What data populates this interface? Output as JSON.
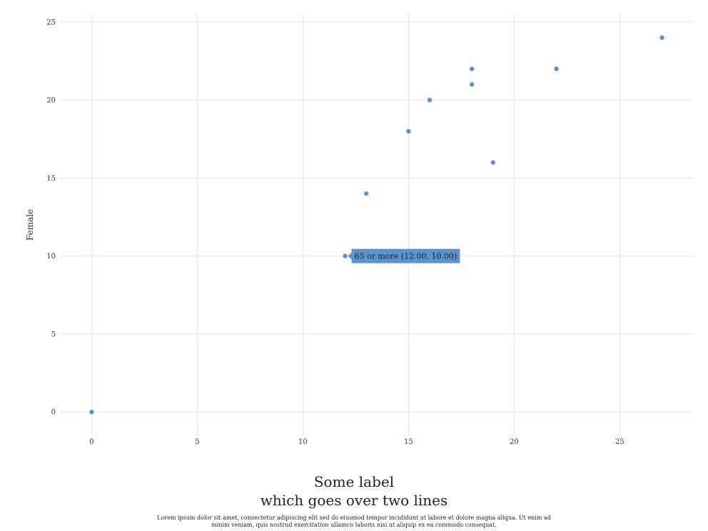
{
  "chart_data": {
    "type": "scatter",
    "ylabel": "Female",
    "xlabel_lines": [
      "Some label",
      "which goes over two lines"
    ],
    "note": "Lorem ipsum dolor sit amet, consectetur adipiscing elit sed do eiusmod tempor incididunt ut labore et dolore magna aliqua. Ut enim ad minim veniam, quis nostrud exercitation ullamco laboris nisi ut aliquip ex ea commodo consequat.",
    "x_ticks": [
      0,
      5,
      10,
      15,
      20,
      25
    ],
    "y_ticks": [
      0,
      5,
      10,
      15,
      20,
      25
    ],
    "xlim": [
      -1.5,
      28.5
    ],
    "ylim": [
      -1.5,
      25.5
    ],
    "grid": true,
    "points": [
      {
        "x": 0,
        "y": 0
      },
      {
        "x": 12,
        "y": 10
      },
      {
        "x": 13,
        "y": 14
      },
      {
        "x": 15,
        "y": 18
      },
      {
        "x": 16,
        "y": 20
      },
      {
        "x": 18,
        "y": 21
      },
      {
        "x": 18,
        "y": 22
      },
      {
        "x": 19,
        "y": 16
      },
      {
        "x": 22,
        "y": 22
      },
      {
        "x": 27,
        "y": 24
      }
    ],
    "tooltip": {
      "label": "65 or more (12.00, 10.00)",
      "x": 12,
      "y": 10
    },
    "colors": {
      "point": "#5b93cf",
      "grid": "#e6e6e6"
    }
  }
}
